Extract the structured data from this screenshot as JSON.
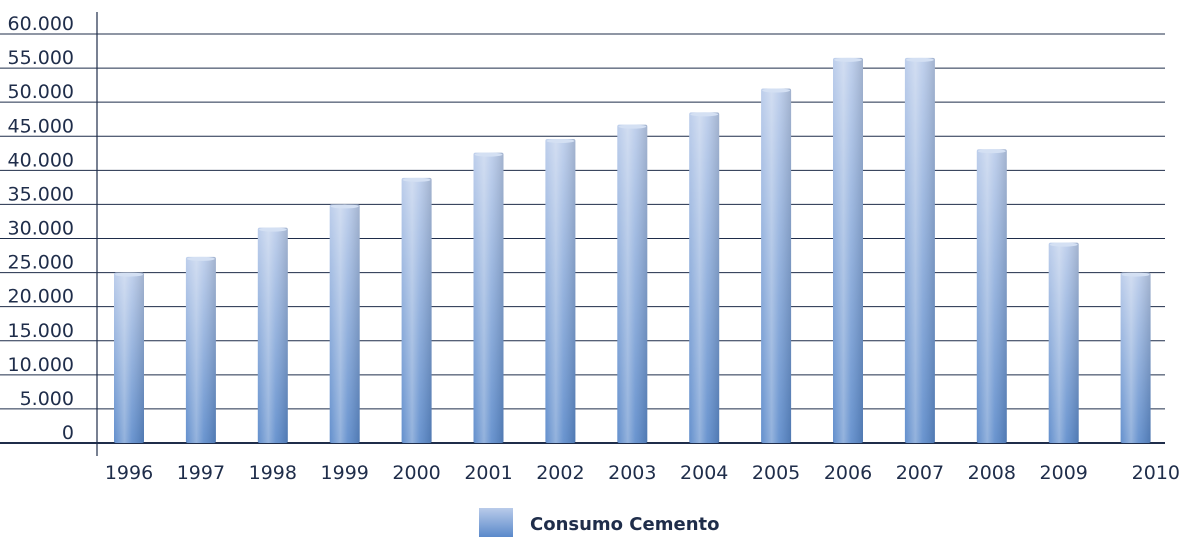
{
  "chart_data": {
    "type": "bar",
    "categories": [
      "1996",
      "1997",
      "1998",
      "1999",
      "2000",
      "2001",
      "2002",
      "2003",
      "2004",
      "2005",
      "2006",
      "2007",
      "2008",
      "2009",
      "2010"
    ],
    "series": [
      {
        "name": "Consumo Cemento",
        "values": [
          25000,
          27300,
          31600,
          35000,
          38900,
          42600,
          44600,
          46700,
          48500,
          52000,
          56500,
          56500,
          43100,
          29400,
          25000
        ]
      }
    ],
    "y_ticks": [
      "0",
      "5.000",
      "10.000",
      "15.000",
      "20.000",
      "25.000",
      "30.000",
      "35.000",
      "40.000",
      "45.000",
      "50.000",
      "55.000",
      "60.000"
    ],
    "ylim": [
      0,
      60000
    ],
    "title": "",
    "xlabel": "",
    "ylabel": "",
    "grid": true,
    "legend_position": "bottom-center",
    "colors": {
      "bar_light": "#b3c6e8",
      "bar_dark": "#5b8acb",
      "gridline": "#1f2d4a",
      "text": "#1f2d4a"
    }
  }
}
